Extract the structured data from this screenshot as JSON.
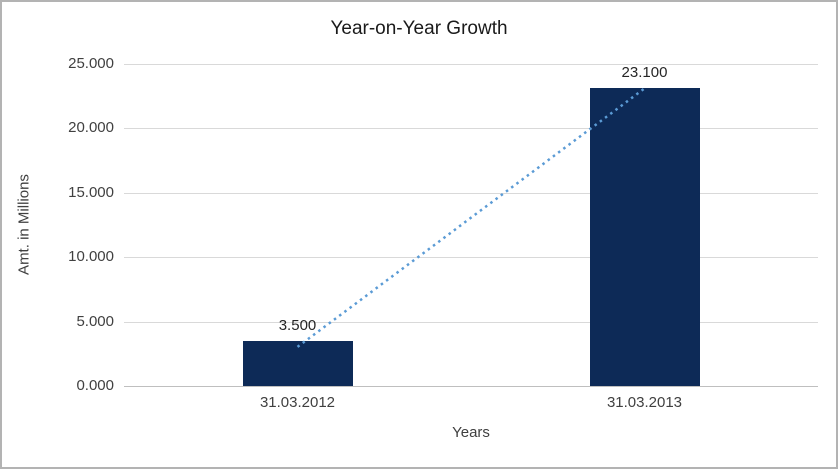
{
  "chart_data": {
    "type": "bar",
    "title": "Year-on-Year Growth",
    "xlabel": "Years",
    "ylabel": "Amt. in Millions",
    "categories": [
      "31.03.2012",
      "31.03.2013"
    ],
    "values": [
      3.5,
      23.1
    ],
    "value_labels": [
      "3.500",
      "23.100"
    ],
    "ylim": [
      0,
      25
    ],
    "yticks": [
      0,
      5,
      10,
      15,
      20,
      25
    ],
    "ytick_labels": [
      "0.000",
      "5.000",
      "10.000",
      "15.000",
      "20.000",
      "25.000"
    ],
    "legend": "none",
    "grid": "horizontal",
    "trendline": {
      "style": "dotted",
      "from_category": 0,
      "to_category": 1,
      "color": "#5b9bd5"
    },
    "colors": {
      "bar": "#0d2a57",
      "gridline": "#d9d9d9",
      "axis_line": "#bfbfbf",
      "text": "#404040"
    }
  }
}
